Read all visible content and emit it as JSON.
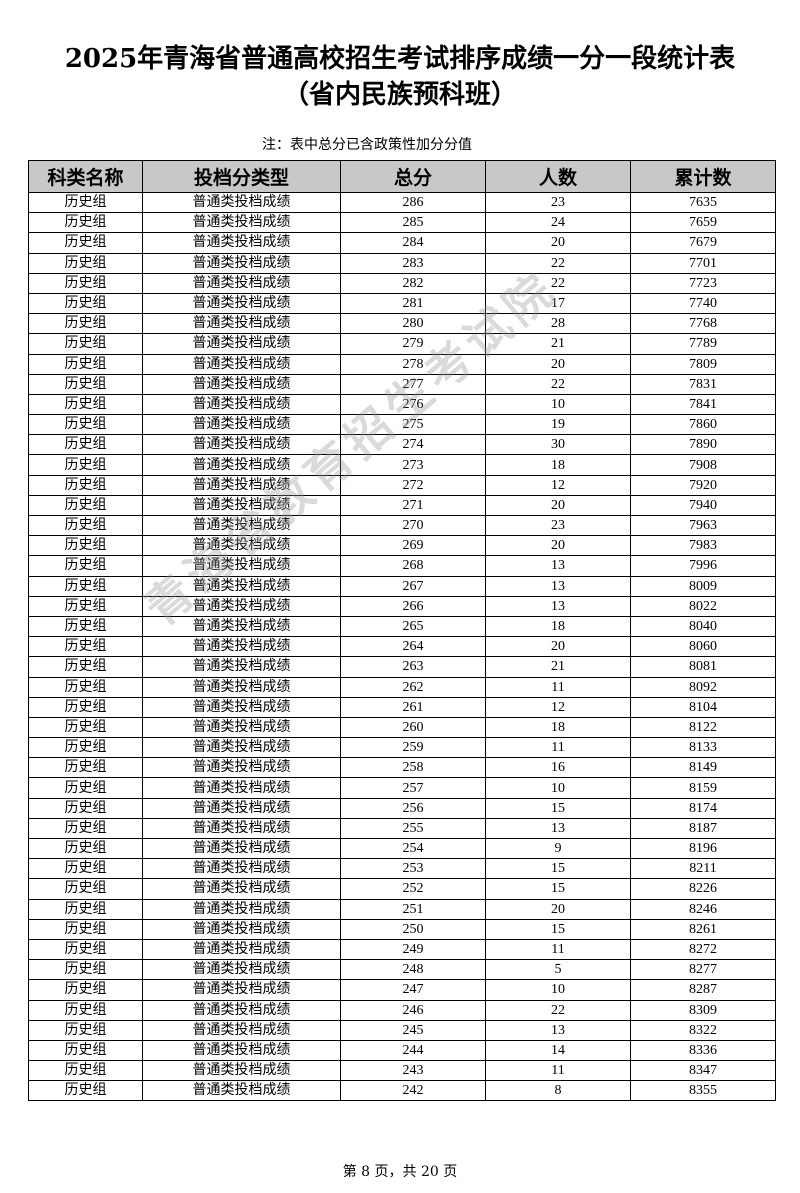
{
  "title_line1": "2025年青海省普通高校招生考试排序成绩一分一段统计表",
  "title_line2": "（省内民族预科班）",
  "note": "注：表中总分已含政策性加分分值",
  "watermark": "青海省教育招生考试院",
  "table": {
    "headers": [
      "科类名称",
      "投档分类型",
      "总分",
      "人数",
      "累计数"
    ],
    "category": "历史组",
    "score_type": "普通类投档成绩",
    "rows": [
      [
        286,
        23,
        7635
      ],
      [
        285,
        24,
        7659
      ],
      [
        284,
        20,
        7679
      ],
      [
        283,
        22,
        7701
      ],
      [
        282,
        22,
        7723
      ],
      [
        281,
        17,
        7740
      ],
      [
        280,
        28,
        7768
      ],
      [
        279,
        21,
        7789
      ],
      [
        278,
        20,
        7809
      ],
      [
        277,
        22,
        7831
      ],
      [
        276,
        10,
        7841
      ],
      [
        275,
        19,
        7860
      ],
      [
        274,
        30,
        7890
      ],
      [
        273,
        18,
        7908
      ],
      [
        272,
        12,
        7920
      ],
      [
        271,
        20,
        7940
      ],
      [
        270,
        23,
        7963
      ],
      [
        269,
        20,
        7983
      ],
      [
        268,
        13,
        7996
      ],
      [
        267,
        13,
        8009
      ],
      [
        266,
        13,
        8022
      ],
      [
        265,
        18,
        8040
      ],
      [
        264,
        20,
        8060
      ],
      [
        263,
        21,
        8081
      ],
      [
        262,
        11,
        8092
      ],
      [
        261,
        12,
        8104
      ],
      [
        260,
        18,
        8122
      ],
      [
        259,
        11,
        8133
      ],
      [
        258,
        16,
        8149
      ],
      [
        257,
        10,
        8159
      ],
      [
        256,
        15,
        8174
      ],
      [
        255,
        13,
        8187
      ],
      [
        254,
        9,
        8196
      ],
      [
        253,
        15,
        8211
      ],
      [
        252,
        15,
        8226
      ],
      [
        251,
        20,
        8246
      ],
      [
        250,
        15,
        8261
      ],
      [
        249,
        11,
        8272
      ],
      [
        248,
        5,
        8277
      ],
      [
        247,
        10,
        8287
      ],
      [
        246,
        22,
        8309
      ],
      [
        245,
        13,
        8322
      ],
      [
        244,
        14,
        8336
      ],
      [
        243,
        11,
        8347
      ],
      [
        242,
        8,
        8355
      ]
    ]
  },
  "footer": "第 8 页，共 20 页"
}
